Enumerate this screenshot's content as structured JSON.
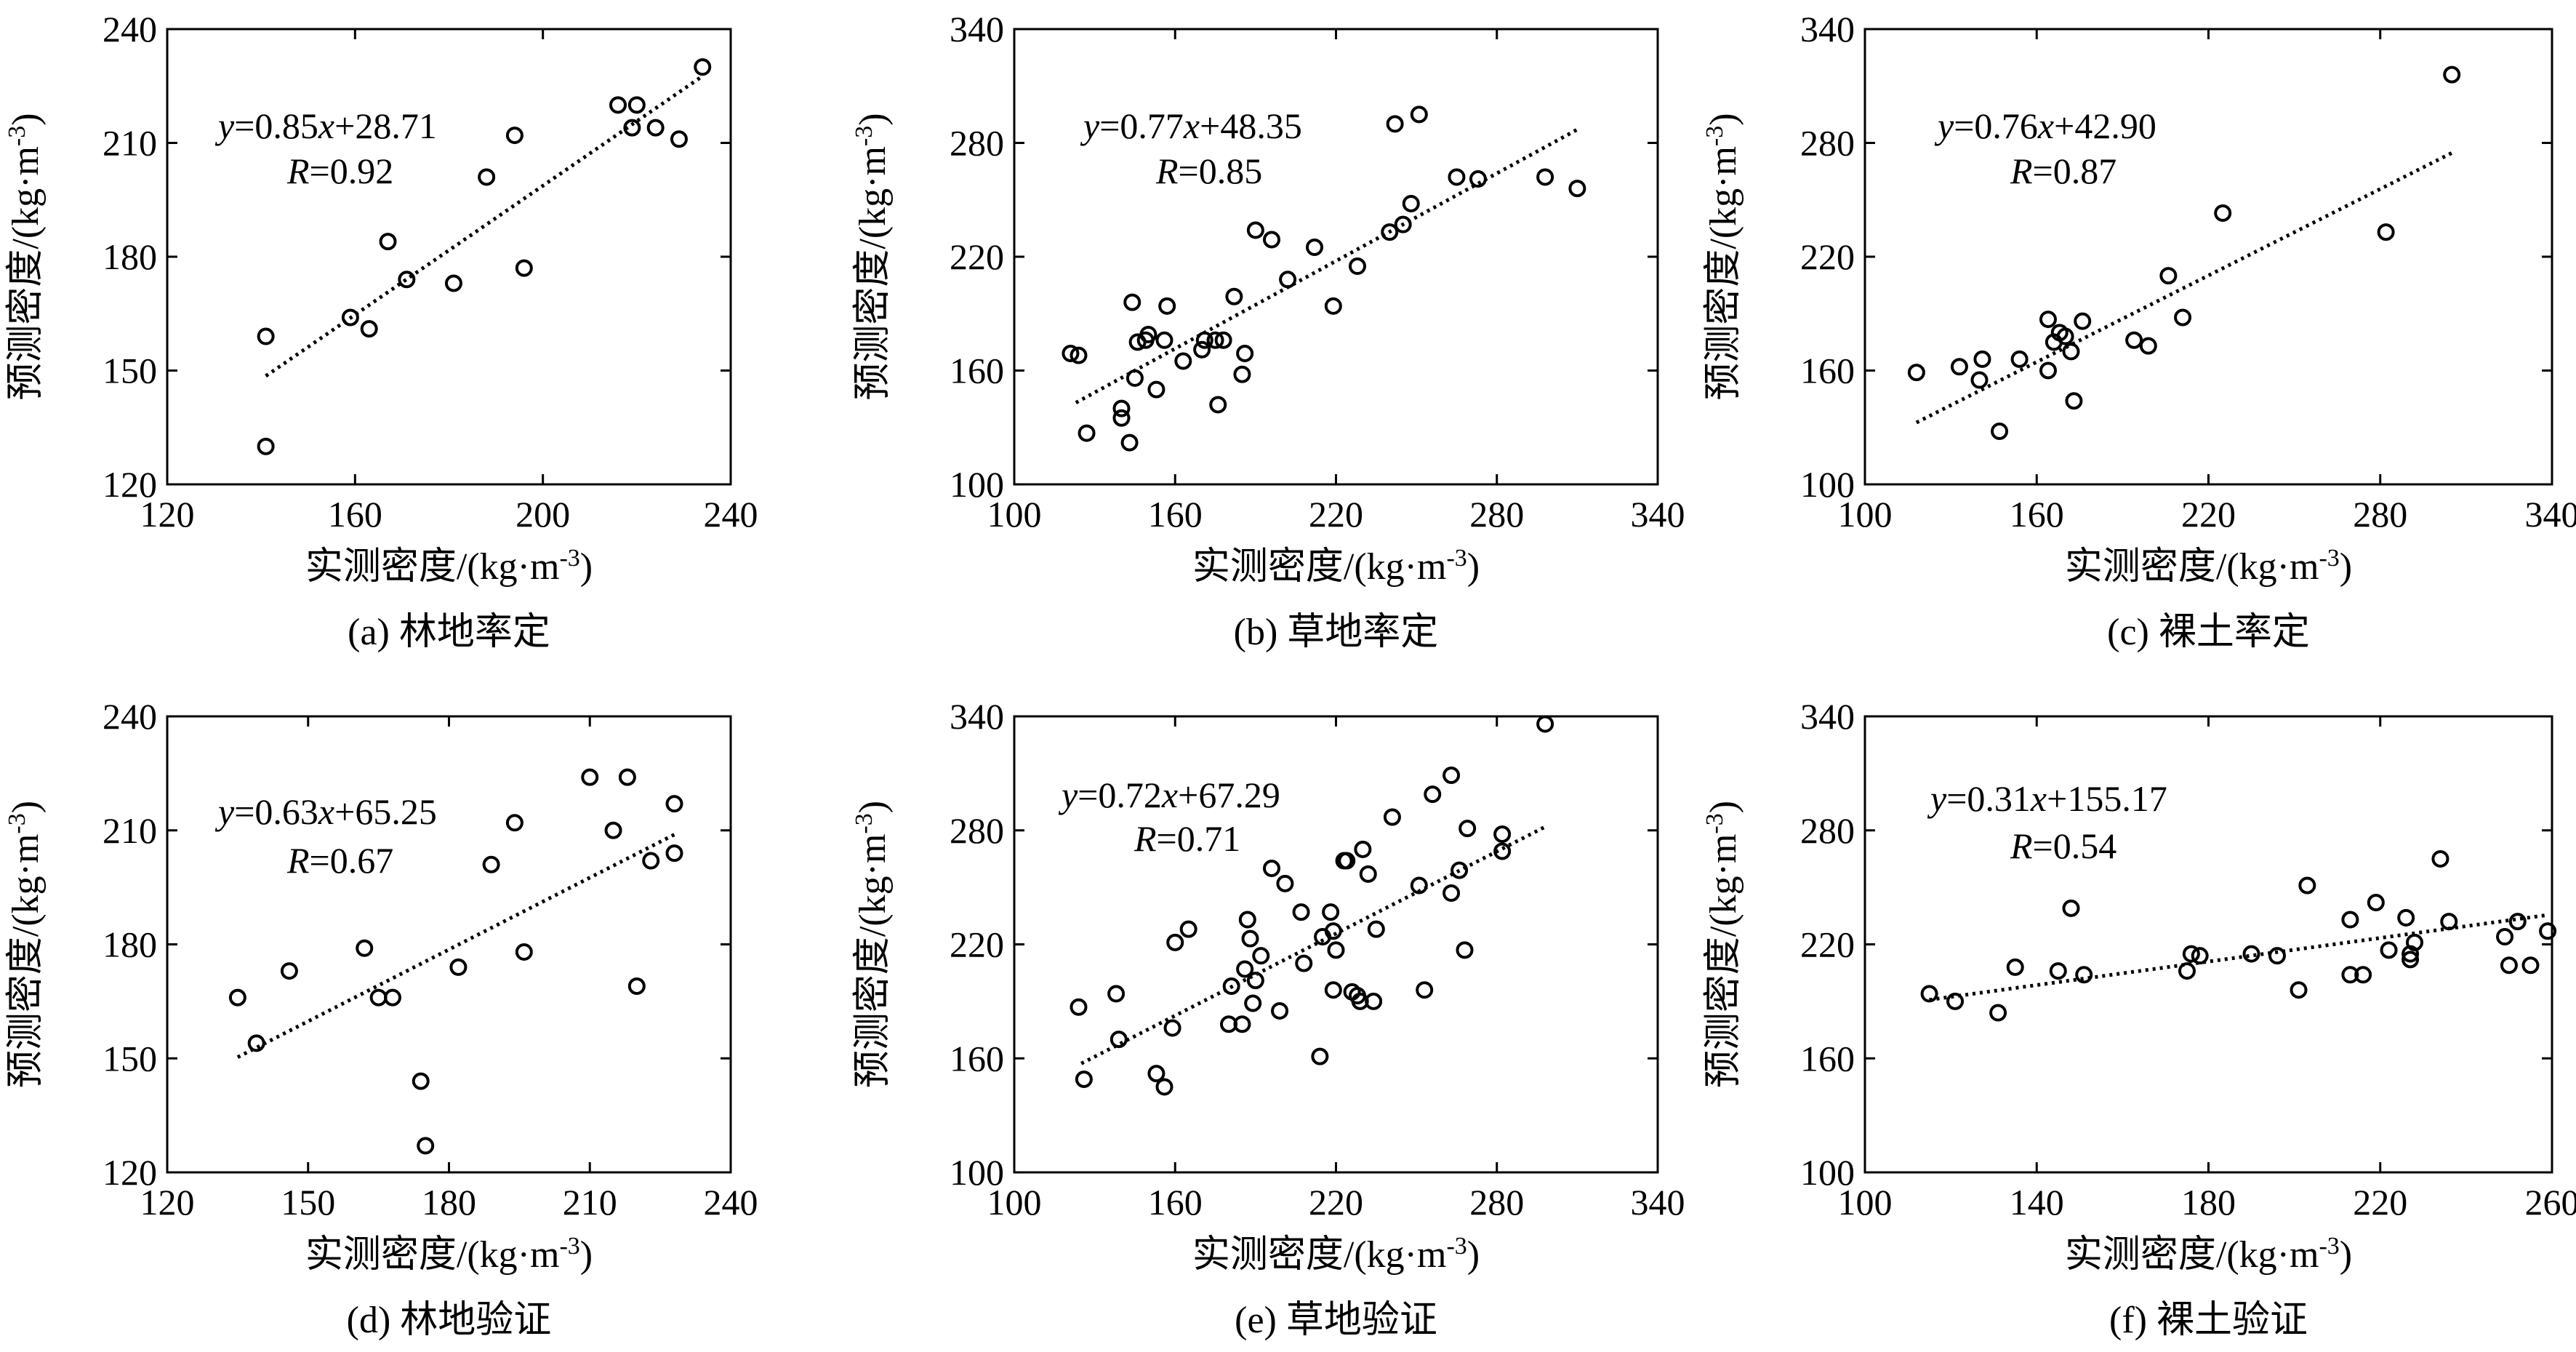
{
  "chart_data": [
    {
      "type": "scatter",
      "caption": "(a) 林地率定",
      "xlabel": "实测密度/(kg·m⁻³)",
      "ylabel": "预测密度/(kg·m⁻³)",
      "xlim": [
        120,
        240
      ],
      "ylim": [
        120,
        240
      ],
      "xticks": [
        120,
        160,
        200,
        240
      ],
      "yticks": [
        120,
        150,
        180,
        210,
        240
      ],
      "equation": "y=0.85x+28.71",
      "r_label": "R=0.92",
      "fit": {
        "slope": 0.85,
        "intercept": 28.71,
        "x_range": [
          141,
          234
        ]
      },
      "points": [
        [
          141,
          159
        ],
        [
          141,
          130
        ],
        [
          159,
          164
        ],
        [
          163,
          161
        ],
        [
          167,
          184
        ],
        [
          171,
          174
        ],
        [
          181,
          173
        ],
        [
          188,
          201
        ],
        [
          194,
          212
        ],
        [
          196,
          177
        ],
        [
          216,
          220
        ],
        [
          219,
          214
        ],
        [
          220,
          220
        ],
        [
          224,
          214
        ],
        [
          229,
          211
        ],
        [
          234,
          230
        ]
      ]
    },
    {
      "type": "scatter",
      "caption": "(b) 草地率定",
      "xlabel": "实测密度/(kg·m⁻³)",
      "ylabel": "预测密度/(kg·m⁻³)",
      "xlim": [
        100,
        340
      ],
      "ylim": [
        100,
        340
      ],
      "xticks": [
        100,
        160,
        220,
        280,
        340
      ],
      "yticks": [
        100,
        160,
        220,
        280,
        340
      ],
      "equation": "y=0.77x+48.35",
      "r_label": "R=0.85",
      "fit": {
        "slope": 0.77,
        "intercept": 48.35,
        "x_range": [
          123,
          310
        ]
      },
      "points": [
        [
          121,
          169
        ],
        [
          124,
          168
        ],
        [
          127,
          127
        ],
        [
          140,
          140
        ],
        [
          140,
          135
        ],
        [
          143,
          122
        ],
        [
          144,
          196
        ],
        [
          145,
          156
        ],
        [
          146,
          175
        ],
        [
          149,
          176
        ],
        [
          150,
          179
        ],
        [
          153,
          150
        ],
        [
          156,
          176
        ],
        [
          157,
          194
        ],
        [
          163,
          165
        ],
        [
          170,
          171
        ],
        [
          171,
          176
        ],
        [
          175,
          176
        ],
        [
          176,
          142
        ],
        [
          178,
          176
        ],
        [
          182,
          199
        ],
        [
          185,
          158
        ],
        [
          186,
          169
        ],
        [
          190,
          234
        ],
        [
          196,
          229
        ],
        [
          202,
          208
        ],
        [
          212,
          225
        ],
        [
          219,
          194
        ],
        [
          228,
          215
        ],
        [
          240,
          233
        ],
        [
          242,
          290
        ],
        [
          245,
          237
        ],
        [
          248,
          248
        ],
        [
          251,
          295
        ],
        [
          265,
          262
        ],
        [
          273,
          261
        ],
        [
          298,
          262
        ],
        [
          310,
          256
        ]
      ]
    },
    {
      "type": "scatter",
      "caption": "(c) 裸土率定",
      "xlabel": "实测密度/(kg·m⁻³)",
      "ylabel": "预测密度/(kg·m⁻³)",
      "xlim": [
        100,
        340
      ],
      "ylim": [
        100,
        340
      ],
      "xticks": [
        100,
        160,
        220,
        280,
        340
      ],
      "yticks": [
        100,
        160,
        220,
        280,
        340
      ],
      "equation": "y=0.76x+42.90",
      "r_label": "R=0.87",
      "fit": {
        "slope": 0.76,
        "intercept": 42.9,
        "x_range": [
          118,
          305
        ]
      },
      "points": [
        [
          118,
          159
        ],
        [
          133,
          162
        ],
        [
          140,
          155
        ],
        [
          141,
          166
        ],
        [
          147,
          128
        ],
        [
          154,
          166
        ],
        [
          164,
          160
        ],
        [
          164,
          187
        ],
        [
          166,
          175
        ],
        [
          168,
          180
        ],
        [
          170,
          178
        ],
        [
          172,
          170
        ],
        [
          173,
          144
        ],
        [
          176,
          186
        ],
        [
          194,
          176
        ],
        [
          199,
          173
        ],
        [
          206,
          210
        ],
        [
          211,
          188
        ],
        [
          225,
          243
        ],
        [
          282,
          233
        ],
        [
          305,
          316
        ]
      ]
    },
    {
      "type": "scatter",
      "caption": "(d) 林地验证",
      "xlabel": "实测密度/(kg·m⁻³)",
      "ylabel": "预测密度/(kg·m⁻³)",
      "xlim": [
        120,
        240
      ],
      "ylim": [
        120,
        240
      ],
      "xticks": [
        120,
        150,
        180,
        210,
        240
      ],
      "yticks": [
        120,
        150,
        180,
        210,
        240
      ],
      "equation": "y=0.63x+65.25",
      "r_label": "R=0.67",
      "fit": {
        "slope": 0.63,
        "intercept": 65.25,
        "x_range": [
          135,
          228
        ]
      },
      "points": [
        [
          135,
          166
        ],
        [
          139,
          154
        ],
        [
          146,
          173
        ],
        [
          162,
          179
        ],
        [
          165,
          166
        ],
        [
          168,
          166
        ],
        [
          174,
          144
        ],
        [
          175,
          127
        ],
        [
          182,
          174
        ],
        [
          189,
          201
        ],
        [
          194,
          212
        ],
        [
          196,
          178
        ],
        [
          210,
          224
        ],
        [
          215,
          210
        ],
        [
          218,
          224
        ],
        [
          220,
          169
        ],
        [
          223,
          202
        ],
        [
          228,
          217
        ],
        [
          228,
          204
        ]
      ]
    },
    {
      "type": "scatter",
      "caption": "(e) 草地验证",
      "xlabel": "实测密度/(kg·m⁻³)",
      "ylabel": "预测密度/(kg·m⁻³)",
      "xlim": [
        100,
        340
      ],
      "ylim": [
        100,
        340
      ],
      "xticks": [
        100,
        160,
        220,
        280,
        340
      ],
      "yticks": [
        100,
        160,
        220,
        280,
        340
      ],
      "equation": "y=0.72x+67.29",
      "r_label": "R=0.71",
      "fit": {
        "slope": 0.72,
        "intercept": 67.29,
        "x_range": [
          125,
          298
        ]
      },
      "points": [
        [
          124,
          187
        ],
        [
          126,
          149
        ],
        [
          138,
          194
        ],
        [
          139,
          170
        ],
        [
          153,
          152
        ],
        [
          156,
          145
        ],
        [
          159,
          176
        ],
        [
          160,
          221
        ],
        [
          165,
          228
        ],
        [
          180,
          178
        ],
        [
          181,
          198
        ],
        [
          185,
          178
        ],
        [
          186,
          207
        ],
        [
          187,
          233
        ],
        [
          188,
          223
        ],
        [
          189,
          189
        ],
        [
          190,
          201
        ],
        [
          192,
          214
        ],
        [
          196,
          260
        ],
        [
          199,
          185
        ],
        [
          201,
          252
        ],
        [
          207,
          237
        ],
        [
          208,
          210
        ],
        [
          214,
          161
        ],
        [
          215,
          224
        ],
        [
          218,
          237
        ],
        [
          219,
          227
        ],
        [
          219,
          196
        ],
        [
          220,
          217
        ],
        [
          223,
          264
        ],
        [
          224,
          264
        ],
        [
          226,
          195
        ],
        [
          228,
          193
        ],
        [
          229,
          190
        ],
        [
          230,
          270
        ],
        [
          232,
          257
        ],
        [
          234,
          190
        ],
        [
          235,
          228
        ],
        [
          241,
          287
        ],
        [
          251,
          251
        ],
        [
          253,
          196
        ],
        [
          256,
          299
        ],
        [
          263,
          309
        ],
        [
          263,
          247
        ],
        [
          266,
          259
        ],
        [
          268,
          217
        ],
        [
          269,
          281
        ],
        [
          282,
          278
        ],
        [
          282,
          269
        ],
        [
          298,
          336
        ]
      ]
    },
    {
      "type": "scatter",
      "caption": "(f) 裸土验证",
      "xlabel": "实测密度/(kg·m⁻³)",
      "ylabel": "预测密度/(kg·m⁻³)",
      "xlim": [
        100,
        260
      ],
      "ylim": [
        100,
        340
      ],
      "xticks": [
        100,
        140,
        180,
        220,
        260
      ],
      "yticks": [
        100,
        160,
        220,
        280,
        340
      ],
      "equation": "y=0.31x+155.17",
      "r_label": "R=0.54",
      "fit": {
        "slope": 0.31,
        "intercept": 155.17,
        "x_range": [
          115,
          259
        ]
      },
      "points": [
        [
          115,
          194
        ],
        [
          121,
          190
        ],
        [
          131,
          184
        ],
        [
          135,
          208
        ],
        [
          145,
          206
        ],
        [
          148,
          239
        ],
        [
          151,
          204
        ],
        [
          175,
          206
        ],
        [
          176,
          215
        ],
        [
          178,
          214
        ],
        [
          190,
          215
        ],
        [
          196,
          214
        ],
        [
          201,
          196
        ],
        [
          203,
          251
        ],
        [
          213,
          204
        ],
        [
          213,
          233
        ],
        [
          216,
          204
        ],
        [
          219,
          242
        ],
        [
          222,
          217
        ],
        [
          226,
          234
        ],
        [
          227,
          212
        ],
        [
          227,
          215
        ],
        [
          228,
          221
        ],
        [
          234,
          265
        ],
        [
          236,
          232
        ],
        [
          249,
          224
        ],
        [
          250,
          209
        ],
        [
          252,
          232
        ],
        [
          255,
          209
        ],
        [
          259,
          227
        ]
      ]
    }
  ]
}
